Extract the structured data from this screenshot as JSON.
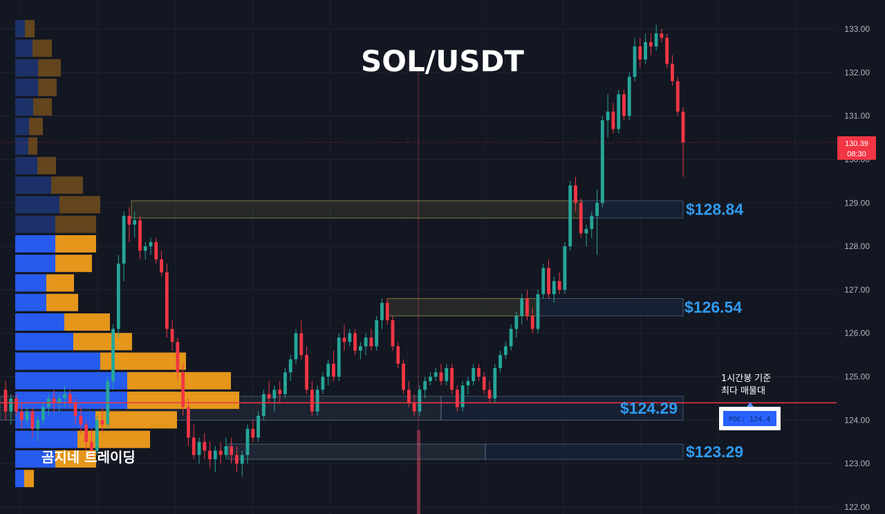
{
  "chart_data": {
    "type": "candlestick",
    "title": "SOL/USDT",
    "ylim": [
      121.9,
      133.35
    ],
    "y_ticks": [
      "122.00",
      "123.00",
      "124.00",
      "125.00",
      "126.00",
      "127.00",
      "128.00",
      "129.00",
      "130.00",
      "131.00",
      "132.00",
      "133.00"
    ],
    "current_price": {
      "value": 130.39,
      "label": "130.39",
      "countdown": "08:30",
      "color": "#f23645"
    },
    "poc_price": 124.4,
    "levels": [
      {
        "label": "$128.84",
        "low": 128.65,
        "high": 129.05
      },
      {
        "label": "$126.54",
        "low": 126.4,
        "high": 126.8
      },
      {
        "label": "$124.29",
        "low": 124.0,
        "high": 124.55
      },
      {
        "label": "$123.29",
        "low": 123.1,
        "high": 123.45
      }
    ],
    "annotation": {
      "line1": "1시간봉 기준",
      "line2": "최다 매물대",
      "badge": "POC: 124.4"
    },
    "watermark": "곰지네 트레이딩",
    "colors": {
      "up": "#26a69a",
      "down": "#f23645",
      "vp_up": "#2962ff",
      "vp_down": "#f7a21b",
      "level": "#2f9bf0",
      "poc_line": "#f23645",
      "background": "#131722"
    },
    "volume_profile": [
      {
        "price": 133.0,
        "buy": 14,
        "sell": 14
      },
      {
        "price": 132.55,
        "buy": 25,
        "sell": 28
      },
      {
        "price": 132.1,
        "buy": 33,
        "sell": 33
      },
      {
        "price": 131.65,
        "buy": 33,
        "sell": 27
      },
      {
        "price": 131.2,
        "buy": 26,
        "sell": 27
      },
      {
        "price": 130.75,
        "buy": 20,
        "sell": 20
      },
      {
        "price": 130.3,
        "buy": 19,
        "sell": 13
      },
      {
        "price": 129.85,
        "buy": 32,
        "sell": 27
      },
      {
        "price": 129.4,
        "buy": 52,
        "sell": 46
      },
      {
        "price": 128.95,
        "buy": 64,
        "sell": 59
      },
      {
        "price": 128.5,
        "buy": 58,
        "sell": 59
      },
      {
        "price": 128.05,
        "buy": 58,
        "sell": 59
      },
      {
        "price": 127.6,
        "buy": 58,
        "sell": 53
      },
      {
        "price": 127.15,
        "buy": 45,
        "sell": 40
      },
      {
        "price": 126.7,
        "buy": 45,
        "sell": 46
      },
      {
        "price": 126.25,
        "buy": 71,
        "sell": 66
      },
      {
        "price": 125.8,
        "buy": 84,
        "sell": 85
      },
      {
        "price": 125.35,
        "buy": 123,
        "sell": 124
      },
      {
        "price": 124.9,
        "buy": 162,
        "sell": 150
      },
      {
        "price": 124.45,
        "buy": 162,
        "sell": 162
      },
      {
        "price": 124.0,
        "buy": 116,
        "sell": 118
      },
      {
        "price": 123.55,
        "buy": 90,
        "sell": 105
      },
      {
        "price": 123.1,
        "buy": 58,
        "sell": 59
      },
      {
        "price": 122.65,
        "buy": 13,
        "sell": 14
      }
    ],
    "candles": [
      [
        124.7,
        124.9,
        124.0,
        124.2
      ],
      [
        124.2,
        124.6,
        123.9,
        124.5
      ],
      [
        124.5,
        124.6,
        124.1,
        124.2
      ],
      [
        124.2,
        124.4,
        123.8,
        124.0
      ],
      [
        124.0,
        124.3,
        123.9,
        124.2
      ],
      [
        124.2,
        124.3,
        123.6,
        123.8
      ],
      [
        123.8,
        124.1,
        123.5,
        124.0
      ],
      [
        124.0,
        124.4,
        123.9,
        124.3
      ],
      [
        124.3,
        124.6,
        124.1,
        124.5
      ],
      [
        124.5,
        124.7,
        124.2,
        124.4
      ],
      [
        124.4,
        124.6,
        124.2,
        124.5
      ],
      [
        124.5,
        124.8,
        124.3,
        124.6
      ],
      [
        124.6,
        124.7,
        124.3,
        124.4
      ],
      [
        124.4,
        124.5,
        123.9,
        124.1
      ],
      [
        124.1,
        124.3,
        123.7,
        123.9
      ],
      [
        123.9,
        124.0,
        123.3,
        123.5
      ],
      [
        123.5,
        123.8,
        123.1,
        123.3
      ],
      [
        123.3,
        124.1,
        123.2,
        124.0
      ],
      [
        124.0,
        124.3,
        123.7,
        123.9
      ],
      [
        123.9,
        125.0,
        123.8,
        124.9
      ],
      [
        124.9,
        126.2,
        124.7,
        126.1
      ],
      [
        126.1,
        127.8,
        125.9,
        127.6
      ],
      [
        127.6,
        128.8,
        127.2,
        128.7
      ],
      [
        128.7,
        128.9,
        128.1,
        128.5
      ],
      [
        128.5,
        128.8,
        128.2,
        128.6
      ],
      [
        128.6,
        128.7,
        127.7,
        127.9
      ],
      [
        127.9,
        128.1,
        127.7,
        128.0
      ],
      [
        128.0,
        128.2,
        127.8,
        128.1
      ],
      [
        128.1,
        128.2,
        127.6,
        127.7
      ],
      [
        127.7,
        127.9,
        127.3,
        127.4
      ],
      [
        127.4,
        127.6,
        125.9,
        126.1
      ],
      [
        126.1,
        126.3,
        125.6,
        125.8
      ],
      [
        125.8,
        125.9,
        124.9,
        125.1
      ],
      [
        125.1,
        125.3,
        124.1,
        124.3
      ],
      [
        124.3,
        124.5,
        123.4,
        123.6
      ],
      [
        123.6,
        123.9,
        123.1,
        123.2
      ],
      [
        123.2,
        123.6,
        123.0,
        123.5
      ],
      [
        123.5,
        123.7,
        123.1,
        123.3
      ],
      [
        123.3,
        123.5,
        122.9,
        123.1
      ],
      [
        123.1,
        123.4,
        122.8,
        123.3
      ],
      [
        123.3,
        123.5,
        123.0,
        123.2
      ],
      [
        123.2,
        123.6,
        123.1,
        123.4
      ],
      [
        123.4,
        123.6,
        123.0,
        123.2
      ],
      [
        123.2,
        123.4,
        122.8,
        123.0
      ],
      [
        123.0,
        123.3,
        122.7,
        123.2
      ],
      [
        123.2,
        123.9,
        123.0,
        123.8
      ],
      [
        123.8,
        124.0,
        123.5,
        123.6
      ],
      [
        123.6,
        124.2,
        123.5,
        124.1
      ],
      [
        124.1,
        124.7,
        124.0,
        124.6
      ],
      [
        124.6,
        124.9,
        124.4,
        124.5
      ],
      [
        124.5,
        124.8,
        124.2,
        124.7
      ],
      [
        124.7,
        124.9,
        124.4,
        124.6
      ],
      [
        124.6,
        125.2,
        124.5,
        125.1
      ],
      [
        125.1,
        125.5,
        124.9,
        125.4
      ],
      [
        125.4,
        126.1,
        125.3,
        126.0
      ],
      [
        126.0,
        126.3,
        125.4,
        125.5
      ],
      [
        125.5,
        125.7,
        124.6,
        124.7
      ],
      [
        124.7,
        124.9,
        124.1,
        124.2
      ],
      [
        124.2,
        124.8,
        124.1,
        124.7
      ],
      [
        124.7,
        125.1,
        124.6,
        125.0
      ],
      [
        125.0,
        125.4,
        124.8,
        125.3
      ],
      [
        125.3,
        125.6,
        124.9,
        125.0
      ],
      [
        125.0,
        126.0,
        124.9,
        125.9
      ],
      [
        125.9,
        126.2,
        125.6,
        125.8
      ],
      [
        125.8,
        126.1,
        125.7,
        126.0
      ],
      [
        126.0,
        126.1,
        125.5,
        125.6
      ],
      [
        125.6,
        125.8,
        125.4,
        125.7
      ],
      [
        125.7,
        126.0,
        125.5,
        125.9
      ],
      [
        125.9,
        126.1,
        125.6,
        125.7
      ],
      [
        125.7,
        126.4,
        125.6,
        126.3
      ],
      [
        126.3,
        126.8,
        126.1,
        126.7
      ],
      [
        126.7,
        126.8,
        126.2,
        126.3
      ],
      [
        126.3,
        126.4,
        125.6,
        125.7
      ],
      [
        125.7,
        125.8,
        125.2,
        125.3
      ],
      [
        125.3,
        125.4,
        124.6,
        124.7
      ],
      [
        124.7,
        124.9,
        124.3,
        124.4
      ],
      [
        124.4,
        124.6,
        124.1,
        124.2
      ],
      [
        124.2,
        124.8,
        124.1,
        124.7
      ],
      [
        124.7,
        125.0,
        124.5,
        124.9
      ],
      [
        124.9,
        125.1,
        124.8,
        125.0
      ],
      [
        125.0,
        125.2,
        124.9,
        125.1
      ],
      [
        125.1,
        125.3,
        124.8,
        124.9
      ],
      [
        124.9,
        125.3,
        124.8,
        125.2
      ],
      [
        125.2,
        125.3,
        124.6,
        124.7
      ],
      [
        124.7,
        124.8,
        124.2,
        124.3
      ],
      [
        124.3,
        124.9,
        124.2,
        124.8
      ],
      [
        124.8,
        125.0,
        124.6,
        124.9
      ],
      [
        124.9,
        125.3,
        124.8,
        125.2
      ],
      [
        125.2,
        125.3,
        124.9,
        125.0
      ],
      [
        125.0,
        125.1,
        124.6,
        124.7
      ],
      [
        124.7,
        124.9,
        124.4,
        124.5
      ],
      [
        124.5,
        125.3,
        124.4,
        125.2
      ],
      [
        125.2,
        125.6,
        125.1,
        125.5
      ],
      [
        125.5,
        125.8,
        125.4,
        125.7
      ],
      [
        125.7,
        126.2,
        125.6,
        126.1
      ],
      [
        126.1,
        126.5,
        125.9,
        126.4
      ],
      [
        126.4,
        126.9,
        126.2,
        126.8
      ],
      [
        126.8,
        127.0,
        126.3,
        126.4
      ],
      [
        126.4,
        126.6,
        126.0,
        126.1
      ],
      [
        126.1,
        127.0,
        126.0,
        126.9
      ],
      [
        126.9,
        127.6,
        126.8,
        127.5
      ],
      [
        127.5,
        127.7,
        126.8,
        126.9
      ],
      [
        126.9,
        127.3,
        126.7,
        127.2
      ],
      [
        127.2,
        127.4,
        126.9,
        127.0
      ],
      [
        127.0,
        128.1,
        126.9,
        128.0
      ],
      [
        128.0,
        129.5,
        127.9,
        129.4
      ],
      [
        129.4,
        129.6,
        128.8,
        129.0
      ],
      [
        129.0,
        129.1,
        128.2,
        128.3
      ],
      [
        128.3,
        128.5,
        128.0,
        128.4
      ],
      [
        128.4,
        128.8,
        128.2,
        128.7
      ],
      [
        128.7,
        129.3,
        127.8,
        129.0
      ],
      [
        129.0,
        131.0,
        128.9,
        130.9
      ],
      [
        130.9,
        131.5,
        130.5,
        131.1
      ],
      [
        131.1,
        131.3,
        130.6,
        130.7
      ],
      [
        130.7,
        131.6,
        130.6,
        131.5
      ],
      [
        131.5,
        131.6,
        130.9,
        131.0
      ],
      [
        131.0,
        132.0,
        130.9,
        131.9
      ],
      [
        131.9,
        132.8,
        131.8,
        132.6
      ],
      [
        132.6,
        132.8,
        132.1,
        132.3
      ],
      [
        132.3,
        132.9,
        132.2,
        132.7
      ],
      [
        132.7,
        132.9,
        132.4,
        132.6
      ],
      [
        132.6,
        133.1,
        132.5,
        132.9
      ],
      [
        132.9,
        133.0,
        132.7,
        132.8
      ],
      [
        132.8,
        132.9,
        132.1,
        132.2
      ],
      [
        132.2,
        132.4,
        131.7,
        131.8
      ],
      [
        131.8,
        131.9,
        131.0,
        131.1
      ],
      [
        131.1,
        131.2,
        129.6,
        130.39
      ]
    ]
  }
}
